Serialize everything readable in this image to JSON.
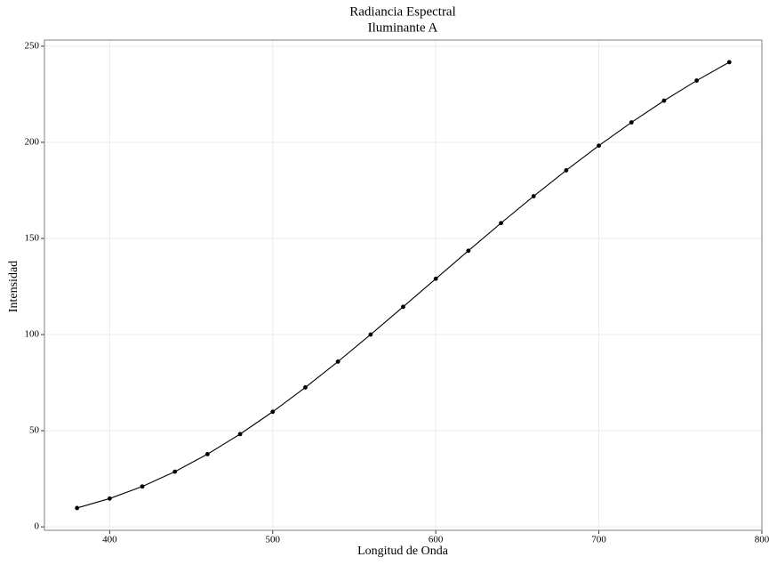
{
  "chart_data": {
    "type": "line",
    "title": "Radiancia Espectral",
    "subtitle": "Iluminante A",
    "x_label": "Longitud de Onda",
    "y_label": "Intensidad",
    "x": [
      380,
      400,
      420,
      440,
      460,
      480,
      500,
      520,
      540,
      560,
      580,
      600,
      620,
      640,
      660,
      680,
      700,
      720,
      740,
      760,
      780
    ],
    "values": [
      9.8,
      14.71,
      20.99,
      28.7,
      37.81,
      48.24,
      59.86,
      72.5,
      85.95,
      100,
      114.44,
      129.04,
      143.62,
      157.98,
      171.96,
      185.43,
      198.26,
      210.36,
      221.67,
      232.12,
      241.68
    ],
    "color": "#000000",
    "markers": true,
    "xlim": [
      360,
      800
    ],
    "ylim": [
      -1.8,
      253.2
    ],
    "xticks": [
      400,
      500,
      600,
      700,
      800
    ],
    "yticks": [
      0,
      50,
      100,
      150,
      200,
      250
    ],
    "grid": true
  }
}
